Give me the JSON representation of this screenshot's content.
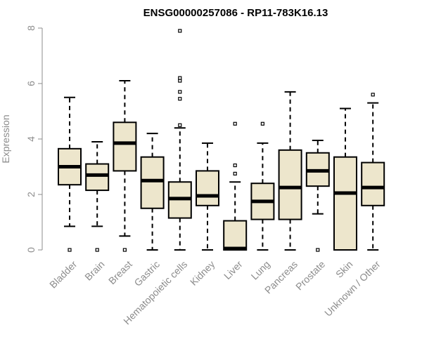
{
  "chart_data": {
    "type": "box",
    "title": "ENSG00000257086 - RP11-783K16.13",
    "xlabel": "",
    "ylabel": "Expression",
    "ylim": [
      0,
      8
    ],
    "yticks": [
      0,
      2,
      4,
      6,
      8
    ],
    "grid": false,
    "colors": {
      "box_fill": "#ede6cc",
      "stroke": "#000000",
      "axis": "#8c8c8c"
    },
    "categories": [
      "Bladder",
      "Brain",
      "Breast",
      "Gastric",
      "Hematopoietic cells",
      "Kidney",
      "Liver",
      "Lung",
      "Pancreas",
      "Prostate",
      "Skin",
      "Unknown / Other"
    ],
    "boxes": [
      {
        "whisker_low": 0.85,
        "q1": 2.35,
        "median": 3.0,
        "q3": 3.65,
        "whisker_high": 5.5,
        "outliers": [
          0.0
        ]
      },
      {
        "whisker_low": 0.85,
        "q1": 2.15,
        "median": 2.7,
        "q3": 3.1,
        "whisker_high": 3.9,
        "outliers": [
          0.0
        ]
      },
      {
        "whisker_low": 0.5,
        "q1": 2.85,
        "median": 3.85,
        "q3": 4.6,
        "whisker_high": 6.1,
        "outliers": [
          0.0
        ]
      },
      {
        "whisker_low": 0.0,
        "q1": 1.5,
        "median": 2.5,
        "q3": 3.35,
        "whisker_high": 4.2,
        "outliers": []
      },
      {
        "whisker_low": 0.0,
        "q1": 1.15,
        "median": 1.85,
        "q3": 2.45,
        "whisker_high": 4.4,
        "outliers": [
          4.5,
          5.45,
          5.7,
          6.1,
          6.2,
          7.9
        ]
      },
      {
        "whisker_low": 0.0,
        "q1": 1.6,
        "median": 1.95,
        "q3": 2.85,
        "whisker_high": 3.85,
        "outliers": []
      },
      {
        "whisker_low": 0.0,
        "q1": 0.0,
        "median": 0.05,
        "q3": 1.05,
        "whisker_high": 2.45,
        "outliers": [
          2.75,
          3.05,
          4.55
        ]
      },
      {
        "whisker_low": 0.0,
        "q1": 1.1,
        "median": 1.75,
        "q3": 2.4,
        "whisker_high": 3.85,
        "outliers": [
          4.55
        ]
      },
      {
        "whisker_low": 0.0,
        "q1": 1.1,
        "median": 2.25,
        "q3": 3.6,
        "whisker_high": 5.7,
        "outliers": []
      },
      {
        "whisker_low": 1.3,
        "q1": 2.3,
        "median": 2.85,
        "q3": 3.5,
        "whisker_high": 3.95,
        "outliers": [
          0.0
        ]
      },
      {
        "whisker_low": 0.0,
        "q1": 0.0,
        "median": 2.05,
        "q3": 3.35,
        "whisker_high": 5.1,
        "outliers": []
      },
      {
        "whisker_low": 0.0,
        "q1": 1.6,
        "median": 2.25,
        "q3": 3.15,
        "whisker_high": 5.3,
        "outliers": [
          5.6
        ]
      }
    ]
  }
}
